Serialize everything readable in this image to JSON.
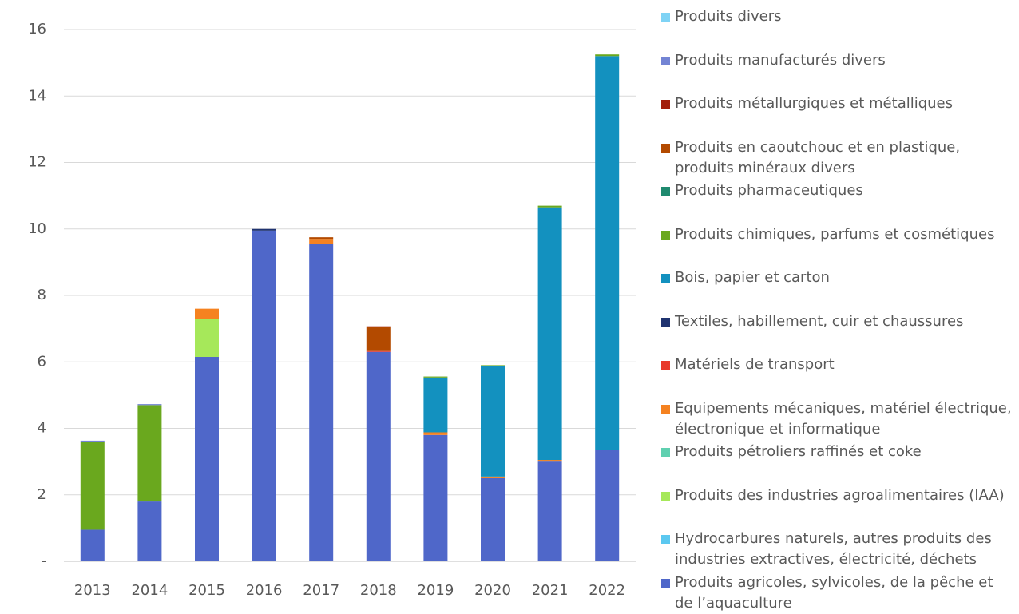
{
  "chart_data": {
    "type": "stacked_bar",
    "categories": [
      "2013",
      "2014",
      "2015",
      "2016",
      "2017",
      "2018",
      "2019",
      "2020",
      "2021",
      "2022"
    ],
    "series": [
      {
        "name": "Produits agricoles, sylvicoles, de la pêche et de l’aquaculture",
        "color": "#4f67c9",
        "values": [
          0.95,
          1.8,
          6.15,
          9.95,
          9.55,
          6.3,
          3.8,
          2.5,
          3.0,
          3.35
        ]
      },
      {
        "name": "Hydrocarbures naturels, autres produits des industries extractives, électricité, déchets",
        "color": "#5bc8f0",
        "values": [
          0,
          0,
          0,
          0,
          0,
          0,
          0,
          0,
          0,
          0
        ]
      },
      {
        "name": "Produits des industries agroalimentaires (IAA)",
        "color": "#a6e85a",
        "values": [
          0,
          0,
          1.15,
          0,
          0,
          0,
          0,
          0,
          0,
          0
        ]
      },
      {
        "name": "Produits pétroliers raffinés et coke",
        "color": "#5fd0b0",
        "values": [
          0,
          0,
          0,
          0,
          0,
          0,
          0,
          0,
          0,
          0
        ]
      },
      {
        "name": "Equipements mécaniques, matériel électrique, électronique et informatique",
        "color": "#f58220",
        "values": [
          0,
          0,
          0.3,
          0,
          0.15,
          0,
          0.08,
          0.05,
          0.05,
          0
        ]
      },
      {
        "name": "Matériels de transport",
        "color": "#e83a2a",
        "values": [
          0,
          0,
          0,
          0,
          0,
          0.05,
          0,
          0,
          0,
          0
        ]
      },
      {
        "name": "Textiles, habillement, cuir et chaussures",
        "color": "#1f3370",
        "values": [
          0,
          0,
          0,
          0.05,
          0,
          0,
          0,
          0,
          0,
          0
        ]
      },
      {
        "name": "Bois, papier et carton",
        "color": "#1391bf",
        "values": [
          0,
          0,
          0,
          0,
          0,
          0,
          1.65,
          3.32,
          7.6,
          11.85
        ]
      },
      {
        "name": "Produits chimiques, parfums et cosmétiques",
        "color": "#6aa81e",
        "values": [
          2.65,
          2.9,
          0,
          0,
          0,
          0,
          0.03,
          0.03,
          0.05,
          0.05
        ]
      },
      {
        "name": "Produits pharmaceutiques",
        "color": "#1f8a6f",
        "values": [
          0,
          0,
          0,
          0,
          0,
          0,
          0,
          0,
          0,
          0
        ]
      },
      {
        "name": "Produits en caoutchouc et en plastique, produits minéraux divers",
        "color": "#b34a00",
        "values": [
          0,
          0,
          0,
          0,
          0.05,
          0.7,
          0,
          0,
          0,
          0
        ]
      },
      {
        "name": "Produits métallurgiques et métalliques",
        "color": "#a21d0a",
        "values": [
          0,
          0,
          0,
          0,
          0,
          0.02,
          0,
          0,
          0,
          0
        ]
      },
      {
        "name": "Produits manufacturés divers",
        "color": "#7384d4",
        "values": [
          0.03,
          0.03,
          0,
          0,
          0,
          0,
          0,
          0,
          0,
          0
        ]
      },
      {
        "name": "Produits divers",
        "color": "#7fd3f5",
        "values": [
          0,
          0,
          0,
          0,
          0,
          0,
          0,
          0,
          0,
          0
        ]
      }
    ],
    "ylim": [
      0,
      16
    ],
    "yticks": [
      {
        "value": 0,
        "label": "-"
      },
      2,
      4,
      6,
      8,
      10,
      12,
      14,
      16
    ],
    "grid": true
  }
}
